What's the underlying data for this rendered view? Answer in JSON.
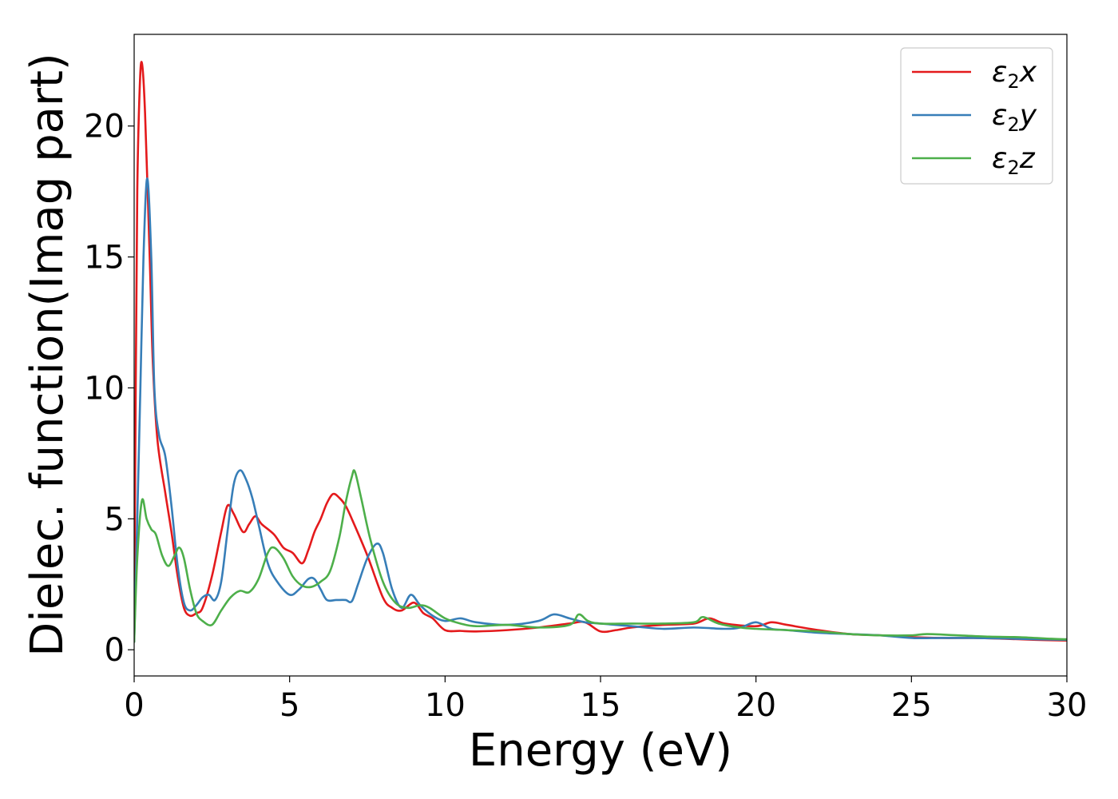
{
  "chart_data": {
    "type": "line",
    "xlabel": "Energy (eV)",
    "ylabel": "Dielec. function(Imag part)",
    "xlim": [
      0,
      30
    ],
    "ylim": [
      -1.0,
      23.5
    ],
    "xticks": [
      0,
      5,
      10,
      15,
      20,
      25,
      30
    ],
    "xtick_labels": [
      "0",
      "5",
      "10",
      "15",
      "20",
      "25",
      "30"
    ],
    "yticks": [
      0,
      5,
      10,
      15,
      20
    ],
    "ytick_labels": [
      "0",
      "5",
      "10",
      "15",
      "20"
    ],
    "grid": false,
    "legend_position": "top-right",
    "series": [
      {
        "name": "ε2x",
        "legend_main": "ε",
        "legend_sub": "2",
        "legend_suffix": "x",
        "color": "#e41a1c",
        "x": [
          0,
          0.05,
          0.1,
          0.18,
          0.25,
          0.35,
          0.5,
          0.6,
          0.75,
          1.0,
          1.2,
          1.4,
          1.6,
          1.8,
          2.0,
          2.2,
          2.5,
          2.8,
          3.0,
          3.2,
          3.5,
          3.7,
          3.9,
          4.1,
          4.5,
          4.8,
          5.1,
          5.4,
          5.6,
          5.8,
          6.0,
          6.2,
          6.4,
          6.6,
          6.8,
          7.0,
          7.5,
          8.0,
          8.3,
          8.6,
          9.0,
          9.3,
          9.6,
          10.0,
          10.5,
          11.0,
          12.0,
          13.0,
          14.0,
          14.5,
          15.0,
          15.5,
          16.0,
          17.0,
          18.0,
          18.5,
          19.0,
          20.0,
          20.5,
          21.0,
          22.0,
          23.0,
          24.0,
          25.0,
          26.0,
          27.0,
          28.0,
          29.0,
          30.0
        ],
        "y": [
          0.5,
          10.0,
          17.5,
          21.5,
          22.4,
          20.5,
          15.0,
          11.0,
          8.0,
          6.0,
          4.5,
          2.8,
          1.6,
          1.3,
          1.4,
          1.6,
          2.8,
          4.5,
          5.5,
          5.2,
          4.5,
          4.8,
          5.1,
          4.8,
          4.4,
          3.9,
          3.7,
          3.3,
          3.8,
          4.5,
          5.0,
          5.6,
          5.95,
          5.8,
          5.5,
          5.0,
          3.6,
          2.0,
          1.6,
          1.5,
          1.8,
          1.4,
          1.2,
          0.75,
          0.72,
          0.7,
          0.75,
          0.85,
          1.0,
          1.05,
          0.7,
          0.75,
          0.85,
          0.95,
          1.0,
          1.2,
          1.0,
          0.9,
          1.05,
          0.95,
          0.75,
          0.6,
          0.55,
          0.48,
          0.45,
          0.45,
          0.42,
          0.38,
          0.35
        ]
      },
      {
        "name": "ε2y",
        "legend_main": "ε",
        "legend_sub": "2",
        "legend_suffix": "y",
        "color": "#377eb8",
        "x": [
          0,
          0.1,
          0.2,
          0.3,
          0.42,
          0.55,
          0.65,
          0.8,
          1.0,
          1.2,
          1.4,
          1.6,
          1.8,
          2.0,
          2.2,
          2.4,
          2.6,
          2.8,
          3.0,
          3.2,
          3.4,
          3.6,
          3.8,
          4.0,
          4.3,
          4.6,
          5.0,
          5.3,
          5.6,
          5.8,
          6.0,
          6.2,
          6.5,
          6.8,
          7.0,
          7.2,
          7.5,
          7.8,
          8.0,
          8.3,
          8.6,
          8.9,
          9.2,
          9.6,
          10.0,
          10.5,
          11.0,
          12.0,
          13.0,
          13.5,
          14.0,
          14.5,
          15.0,
          16.0,
          17.0,
          18.0,
          19.0,
          19.5,
          20.0,
          20.5,
          21.0,
          22.0,
          23.0,
          24.0,
          25.0,
          26.0,
          27.0,
          28.0,
          29.0,
          30.0
        ],
        "y": [
          0.3,
          5.0,
          10.0,
          15.0,
          18.0,
          15.0,
          10.0,
          8.2,
          7.4,
          5.5,
          3.2,
          1.8,
          1.5,
          1.7,
          2.0,
          2.1,
          1.9,
          2.6,
          4.5,
          6.3,
          6.85,
          6.5,
          5.8,
          4.8,
          3.3,
          2.6,
          2.1,
          2.3,
          2.7,
          2.7,
          2.3,
          1.9,
          1.9,
          1.9,
          1.85,
          2.5,
          3.5,
          4.05,
          3.7,
          2.3,
          1.6,
          2.1,
          1.7,
          1.3,
          1.1,
          1.2,
          1.05,
          0.95,
          1.1,
          1.35,
          1.2,
          1.05,
          1.0,
          0.9,
          0.8,
          0.85,
          0.8,
          0.85,
          1.05,
          0.8,
          0.75,
          0.65,
          0.6,
          0.55,
          0.45,
          0.45,
          0.45,
          0.43,
          0.4,
          0.38
        ]
      },
      {
        "name": "ε2z",
        "legend_main": "ε",
        "legend_sub": "2",
        "legend_suffix": "z",
        "color": "#4daf4a",
        "x": [
          0,
          0.1,
          0.25,
          0.4,
          0.55,
          0.7,
          0.9,
          1.1,
          1.3,
          1.45,
          1.6,
          1.8,
          2.0,
          2.2,
          2.5,
          2.8,
          3.1,
          3.4,
          3.7,
          4.0,
          4.3,
          4.5,
          4.8,
          5.1,
          5.4,
          5.7,
          6.0,
          6.3,
          6.6,
          6.8,
          7.0,
          7.1,
          7.3,
          7.6,
          8.0,
          8.4,
          8.8,
          9.2,
          9.5,
          10.0,
          10.5,
          11.0,
          12.0,
          13.0,
          14.0,
          14.3,
          14.6,
          15.0,
          16.0,
          17.0,
          18.0,
          18.3,
          18.8,
          19.5,
          20.0,
          21.0,
          22.0,
          23.0,
          24.0,
          25.0,
          25.5,
          26.5,
          27.5,
          28.5,
          29.5,
          30.0
        ],
        "y": [
          0.3,
          3.5,
          5.7,
          5.0,
          4.6,
          4.4,
          3.6,
          3.2,
          3.6,
          3.9,
          3.5,
          2.3,
          1.4,
          1.1,
          0.95,
          1.5,
          2.0,
          2.25,
          2.2,
          2.7,
          3.7,
          3.9,
          3.5,
          2.8,
          2.45,
          2.4,
          2.6,
          3.0,
          4.3,
          5.6,
          6.6,
          6.8,
          5.8,
          4.2,
          2.6,
          1.8,
          1.6,
          1.7,
          1.6,
          1.2,
          1.0,
          0.9,
          0.95,
          0.85,
          0.95,
          1.35,
          1.1,
          1.0,
          1.0,
          1.0,
          1.05,
          1.25,
          1.0,
          0.85,
          0.8,
          0.75,
          0.7,
          0.6,
          0.55,
          0.55,
          0.6,
          0.55,
          0.5,
          0.48,
          0.42,
          0.4
        ]
      }
    ]
  }
}
